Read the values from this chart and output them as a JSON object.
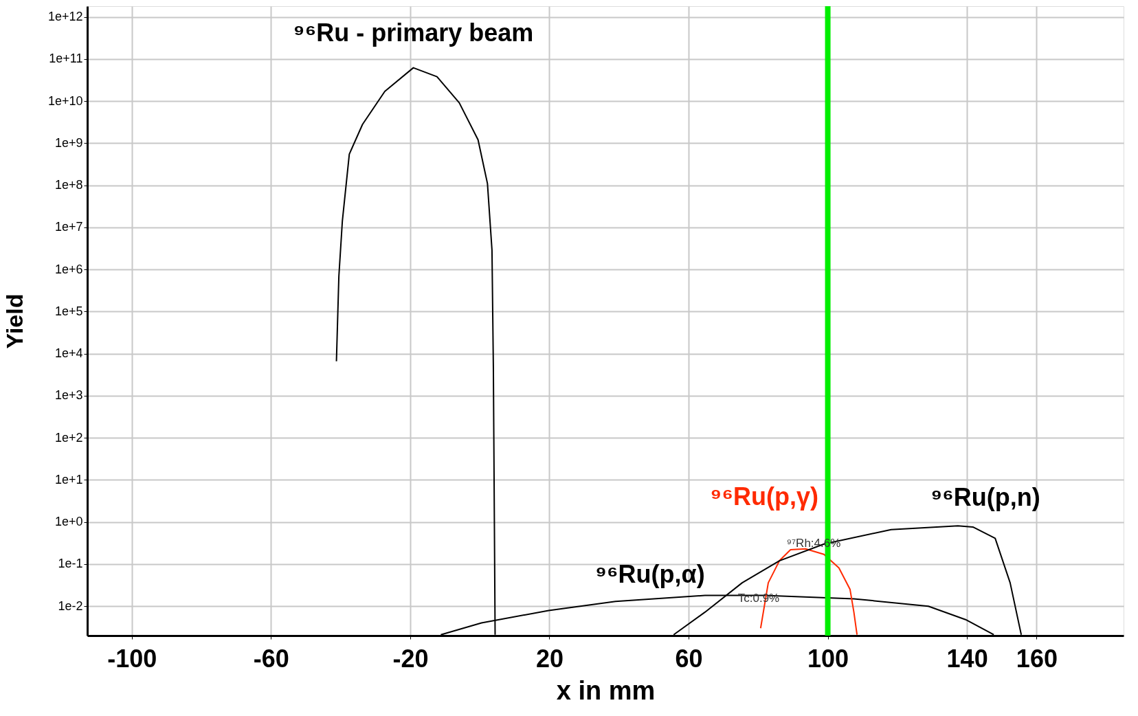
{
  "chart_data": {
    "type": "line",
    "xlabel": "x in mm",
    "ylabel": "Yield",
    "log": "y",
    "grid": true,
    "marker": "none",
    "line_style": "solid",
    "xlim": [
      -112.8,
      185
    ],
    "xticks": [
      -100,
      -60,
      -20,
      20,
      60,
      100,
      140,
      160
    ],
    "ylim": [
      0.002,
      1800000000000.0
    ],
    "yticks": [
      {
        "value": 0.01,
        "label": "1e-2"
      },
      {
        "value": 0.1,
        "label": "1e-1"
      },
      {
        "value": 1,
        "label": "1e+0"
      },
      {
        "value": 10,
        "label": "1e+1"
      },
      {
        "value": 100,
        "label": "1e+2"
      },
      {
        "value": 1000,
        "label": "1e+3"
      },
      {
        "value": 10000,
        "label": "1e+4"
      },
      {
        "value": 100000,
        "label": "1e+5"
      },
      {
        "value": 1000000,
        "label": "1e+6"
      },
      {
        "value": 10000000,
        "label": "1e+7"
      },
      {
        "value": 100000000,
        "label": "1e+8"
      },
      {
        "value": 1000000000,
        "label": "1e+9"
      },
      {
        "value": 10000000000,
        "label": "1e+10"
      },
      {
        "value": 100000000000,
        "label": "1e+11"
      },
      {
        "value": 1000000000000,
        "label": "1e+12"
      }
    ],
    "series": [
      {
        "name": "⁹⁶Ru - primary beam",
        "color": "#000000",
        "x": [
          -41.2,
          -40.5,
          -39.5,
          -37.5,
          -33.7,
          -27.3,
          -19.1,
          -12.3,
          -5.9,
          -0.5,
          2.2,
          3.5,
          3.9,
          4.4
        ],
        "values": [
          6600,
          690000,
          14000000,
          550000000,
          2800000000,
          17000000000,
          62000000000,
          38000000000,
          9100000000,
          1200000000,
          110000000,
          2900000,
          4500,
          0.0021
        ]
      },
      {
        "name": "⁹⁶Ru(p,α)",
        "color": "#000000",
        "x": [
          -11.2,
          0.5,
          19.8,
          39,
          64.7,
          81.8,
          107.5,
          128.9,
          139.6,
          147.7
        ],
        "values": [
          0.0021,
          0.004,
          0.0079,
          0.013,
          0.018,
          0.018,
          0.015,
          0.01,
          0.0048,
          0.0021
        ]
      },
      {
        "name": "⁹⁶Ru(p,γ)",
        "color": "#ff2a00",
        "x": [
          80.7,
          82.9,
          86.1,
          89.3,
          93.6,
          98.9,
          103.2,
          106.4,
          107.5,
          108.4
        ],
        "values": [
          0.003,
          0.036,
          0.12,
          0.22,
          0.23,
          0.17,
          0.081,
          0.025,
          0.0072,
          0.0021
        ]
      },
      {
        "name": "⁹⁶Ru(p,n)",
        "color": "#000000",
        "x": [
          55.7,
          64.7,
          75.4,
          86.1,
          98.9,
          118.2,
          137.4,
          141.7,
          148.1,
          152.4,
          155.6
        ],
        "values": [
          0.0021,
          0.0072,
          0.036,
          0.12,
          0.3,
          0.66,
          0.81,
          0.76,
          0.41,
          0.036,
          0.0021
        ]
      }
    ],
    "ref_lines": [
      {
        "axis": "x",
        "value": 100,
        "color": "#00ee00"
      }
    ],
    "annotations": [
      "⁹⁷Rh:4.6%",
      "Tc:0.9%"
    ]
  }
}
